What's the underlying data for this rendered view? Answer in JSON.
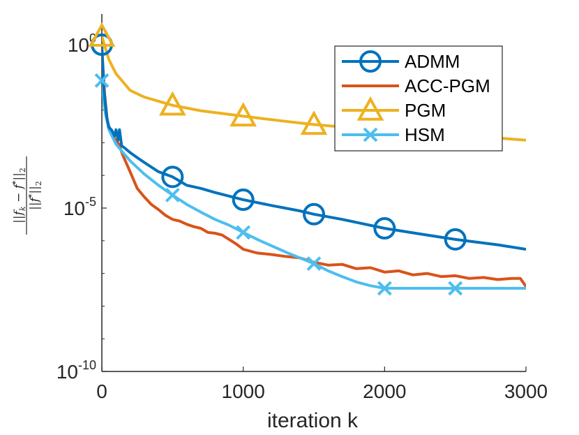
{
  "chart_data": {
    "type": "line",
    "xlabel": "iteration k",
    "ylabel": "||f_k − f*||_2 / ||f*||_2",
    "ylabel_parts": {
      "num_left": "||",
      "num_fk": "f",
      "num_k": "k",
      "num_minus": " − ",
      "num_fstar": "f",
      "num_star": "*",
      "num_right": "||",
      "num_sub": "2",
      "den_left": "||",
      "den_f": "f",
      "den_star": "*",
      "den_right": "||",
      "den_sub": "2"
    },
    "xlim": [
      0,
      3000
    ],
    "ylim": [
      1e-10,
      1.0
    ],
    "yscale": "log",
    "grid": false,
    "legend_position": "top-right",
    "x_ticks": [
      {
        "value": 0,
        "label": "0"
      },
      {
        "value": 1000,
        "label": "1000"
      },
      {
        "value": 2000,
        "label": "2000"
      },
      {
        "value": 3000,
        "label": "3000"
      }
    ],
    "y_ticks": [
      {
        "value": 1.0,
        "base": "10",
        "exp": "0"
      },
      {
        "value": 1e-05,
        "base": "10",
        "exp": "-5"
      },
      {
        "value": 1e-10,
        "base": "10",
        "exp": "-10"
      }
    ],
    "series": [
      {
        "name": "ADMM",
        "color": "#0072BD",
        "marker": "circle",
        "x": [
          0,
          15,
          35,
          50,
          70,
          90,
          100,
          115,
          125,
          140,
          160,
          200,
          250,
          300,
          400,
          500,
          600,
          700,
          800,
          1000,
          1200,
          1400,
          1500,
          1700,
          2000,
          2300,
          2500,
          2800,
          3000
        ],
        "y": [
          1.0,
          0.04,
          0.006,
          0.003,
          0.0024,
          0.0016,
          0.0025,
          0.0012,
          0.0025,
          0.0008,
          0.0007,
          0.0005,
          0.00035,
          0.00025,
          0.00013,
          9e-05,
          5e-05,
          4e-05,
          3e-05,
          1.8e-05,
          1.2e-05,
          8.2e-06,
          6.5e-06,
          4.5e-06,
          2.4e-06,
          1.5e-06,
          1.1e-06,
          7.5e-07,
          5.5e-07
        ],
        "marker_x": [
          0,
          500,
          1000,
          1500,
          2000,
          2500
        ]
      },
      {
        "name": "ACC-PGM",
        "color": "#D95319",
        "marker": "none",
        "x": [
          0,
          20,
          40,
          60,
          80,
          100,
          120,
          150,
          200,
          250,
          300,
          350,
          400,
          450,
          500,
          550,
          600,
          650,
          700,
          750,
          800,
          850,
          900,
          950,
          1000,
          1100,
          1200,
          1300,
          1400,
          1500,
          1600,
          1700,
          1800,
          1900,
          2000,
          2100,
          2200,
          2300,
          2400,
          2500,
          2600,
          2700,
          2800,
          2900,
          2960,
          3000
        ],
        "y": [
          0.7,
          0.03,
          0.004,
          0.0025,
          0.0015,
          0.0012,
          0.0009,
          0.0004,
          0.00013,
          4e-05,
          2.2e-05,
          1.3e-05,
          9e-06,
          6e-06,
          4.5e-06,
          4e-06,
          3.2e-06,
          2.7e-06,
          2.4e-06,
          1.8e-06,
          1.7e-06,
          1.5e-06,
          1.1e-06,
          8e-07,
          5.5e-07,
          4.2e-07,
          3.8e-07,
          3.3e-07,
          3e-07,
          2.2e-07,
          1.8e-07,
          1.9e-07,
          1.4e-07,
          1.5e-07,
          1.1e-07,
          1.2e-07,
          9e-08,
          1e-07,
          8e-08,
          8.5e-08,
          7e-08,
          7.5e-08,
          6.5e-08,
          7e-08,
          7e-08,
          4e-08
        ]
      },
      {
        "name": "PGM",
        "color": "#EDB120",
        "marker": "triangle",
        "x": [
          0,
          50,
          100,
          200,
          300,
          500,
          700,
          1000,
          1300,
          1500,
          1800,
          2000,
          2300,
          2500,
          2800,
          3000
        ],
        "y": [
          1.8,
          0.35,
          0.13,
          0.04,
          0.025,
          0.014,
          0.0095,
          0.0065,
          0.0045,
          0.0036,
          0.0028,
          0.0024,
          0.0019,
          0.0017,
          0.0014,
          0.0012
        ],
        "marker_x": [
          0,
          500,
          1000,
          1500,
          2000,
          2500
        ]
      },
      {
        "name": "HSM",
        "color": "#4DBEEE",
        "marker": "x",
        "x": [
          0,
          20,
          50,
          100,
          150,
          200,
          300,
          400,
          500,
          600,
          700,
          800,
          900,
          1000,
          1100,
          1200,
          1300,
          1400,
          1500,
          1600,
          1700,
          1800,
          1900,
          2000,
          2200,
          2500,
          2800,
          3000
        ],
        "y": [
          0.08,
          0.01,
          0.0025,
          0.0009,
          0.0005,
          0.00028,
          0.00011,
          5e-05,
          2.5e-05,
          1.3e-05,
          7.5e-06,
          4.5e-06,
          3e-06,
          1.8e-06,
          1.1e-06,
          7e-07,
          4.5e-07,
          3e-07,
          2e-07,
          1.2e-07,
          8e-08,
          5.5e-08,
          4.2e-08,
          3.5e-08,
          3.5e-08,
          3.5e-08,
          3.5e-08,
          3.5e-08
        ],
        "marker_x": [
          0,
          500,
          1000,
          1500,
          2000,
          2500
        ]
      }
    ]
  }
}
